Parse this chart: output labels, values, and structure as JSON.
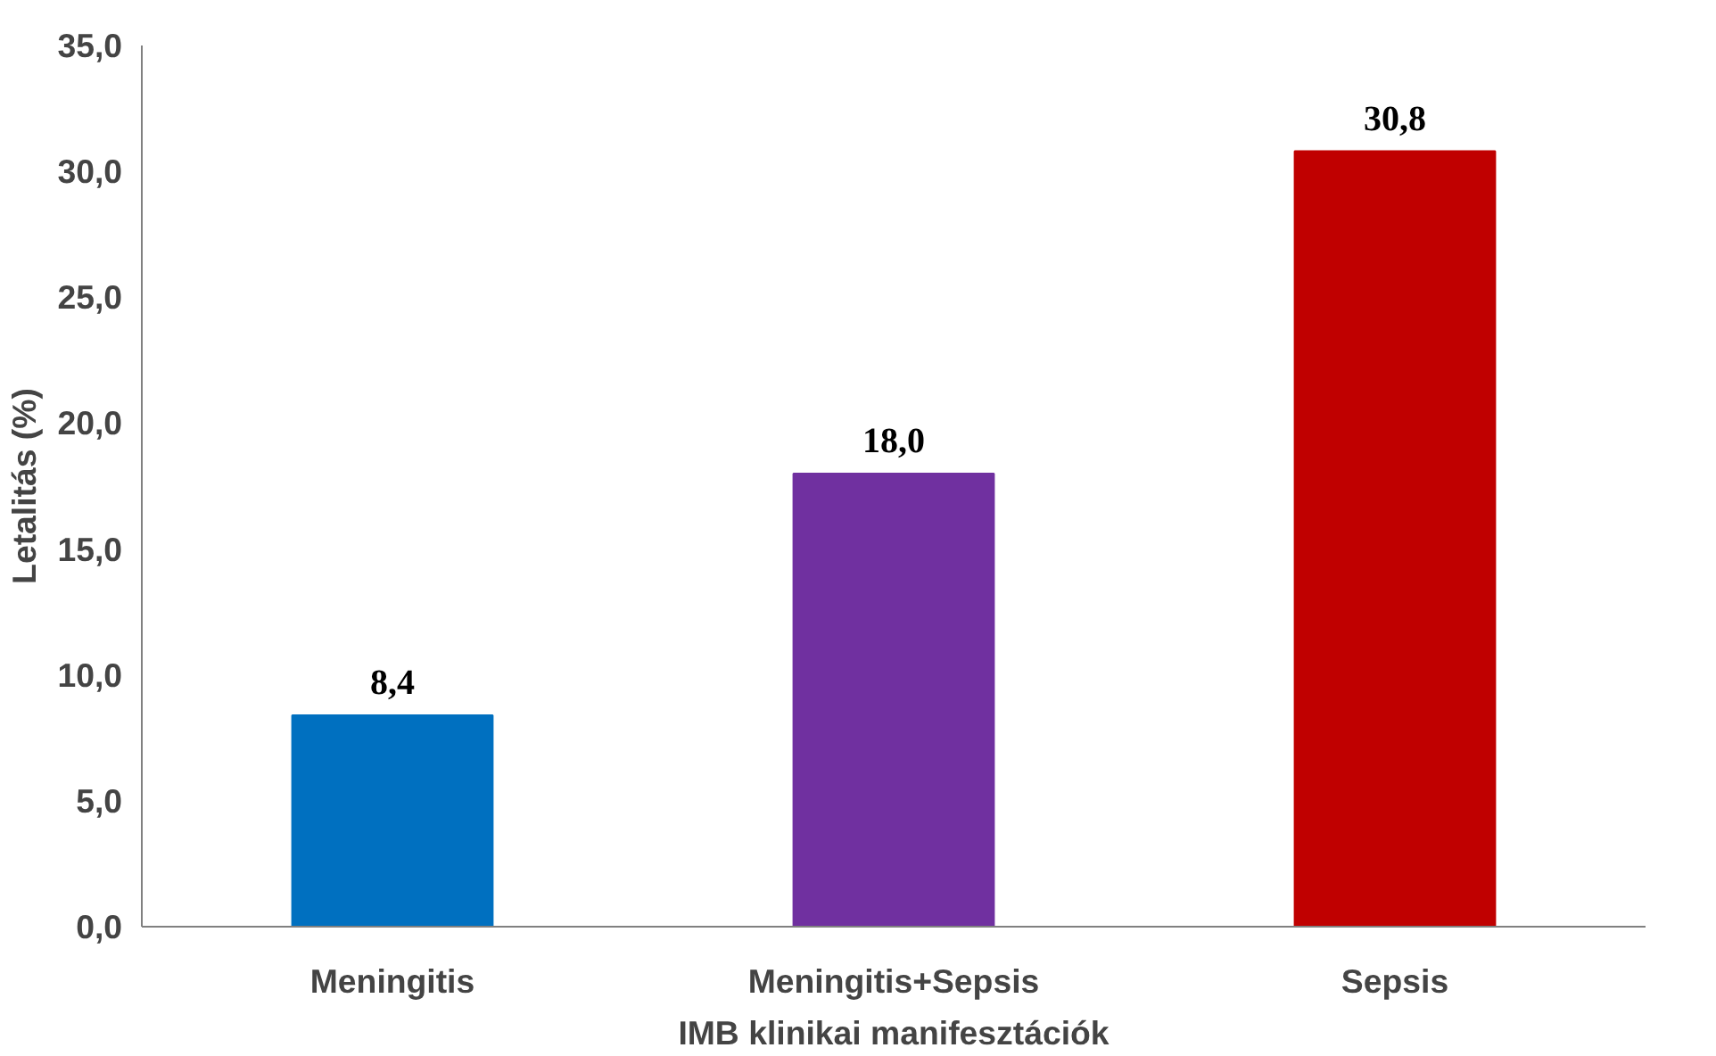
{
  "chart_data": {
    "type": "bar",
    "xlabel": "IMB klinikai manifesztációk",
    "ylabel": "Letalitás (%)",
    "categories": [
      "Meningitis",
      "Meningitis+Sepsis",
      "Sepsis"
    ],
    "values": [
      8.4,
      18.0,
      30.8
    ],
    "colors": [
      "#0070c0",
      "#7030a0",
      "#c00000"
    ],
    "value_labels": [
      "8,4",
      "18,0",
      "30,8"
    ],
    "ylim": [
      0,
      35
    ],
    "yticks": [
      {
        "value": 0,
        "label": "0,0"
      },
      {
        "value": 5,
        "label": "5,0"
      },
      {
        "value": 10,
        "label": "10,0"
      },
      {
        "value": 15,
        "label": "15,0"
      },
      {
        "value": 20,
        "label": "20,0"
      },
      {
        "value": 25,
        "label": "25,0"
      },
      {
        "value": 30,
        "label": "30,0"
      },
      {
        "value": 35,
        "label": "35,0"
      }
    ],
    "grid": false
  }
}
